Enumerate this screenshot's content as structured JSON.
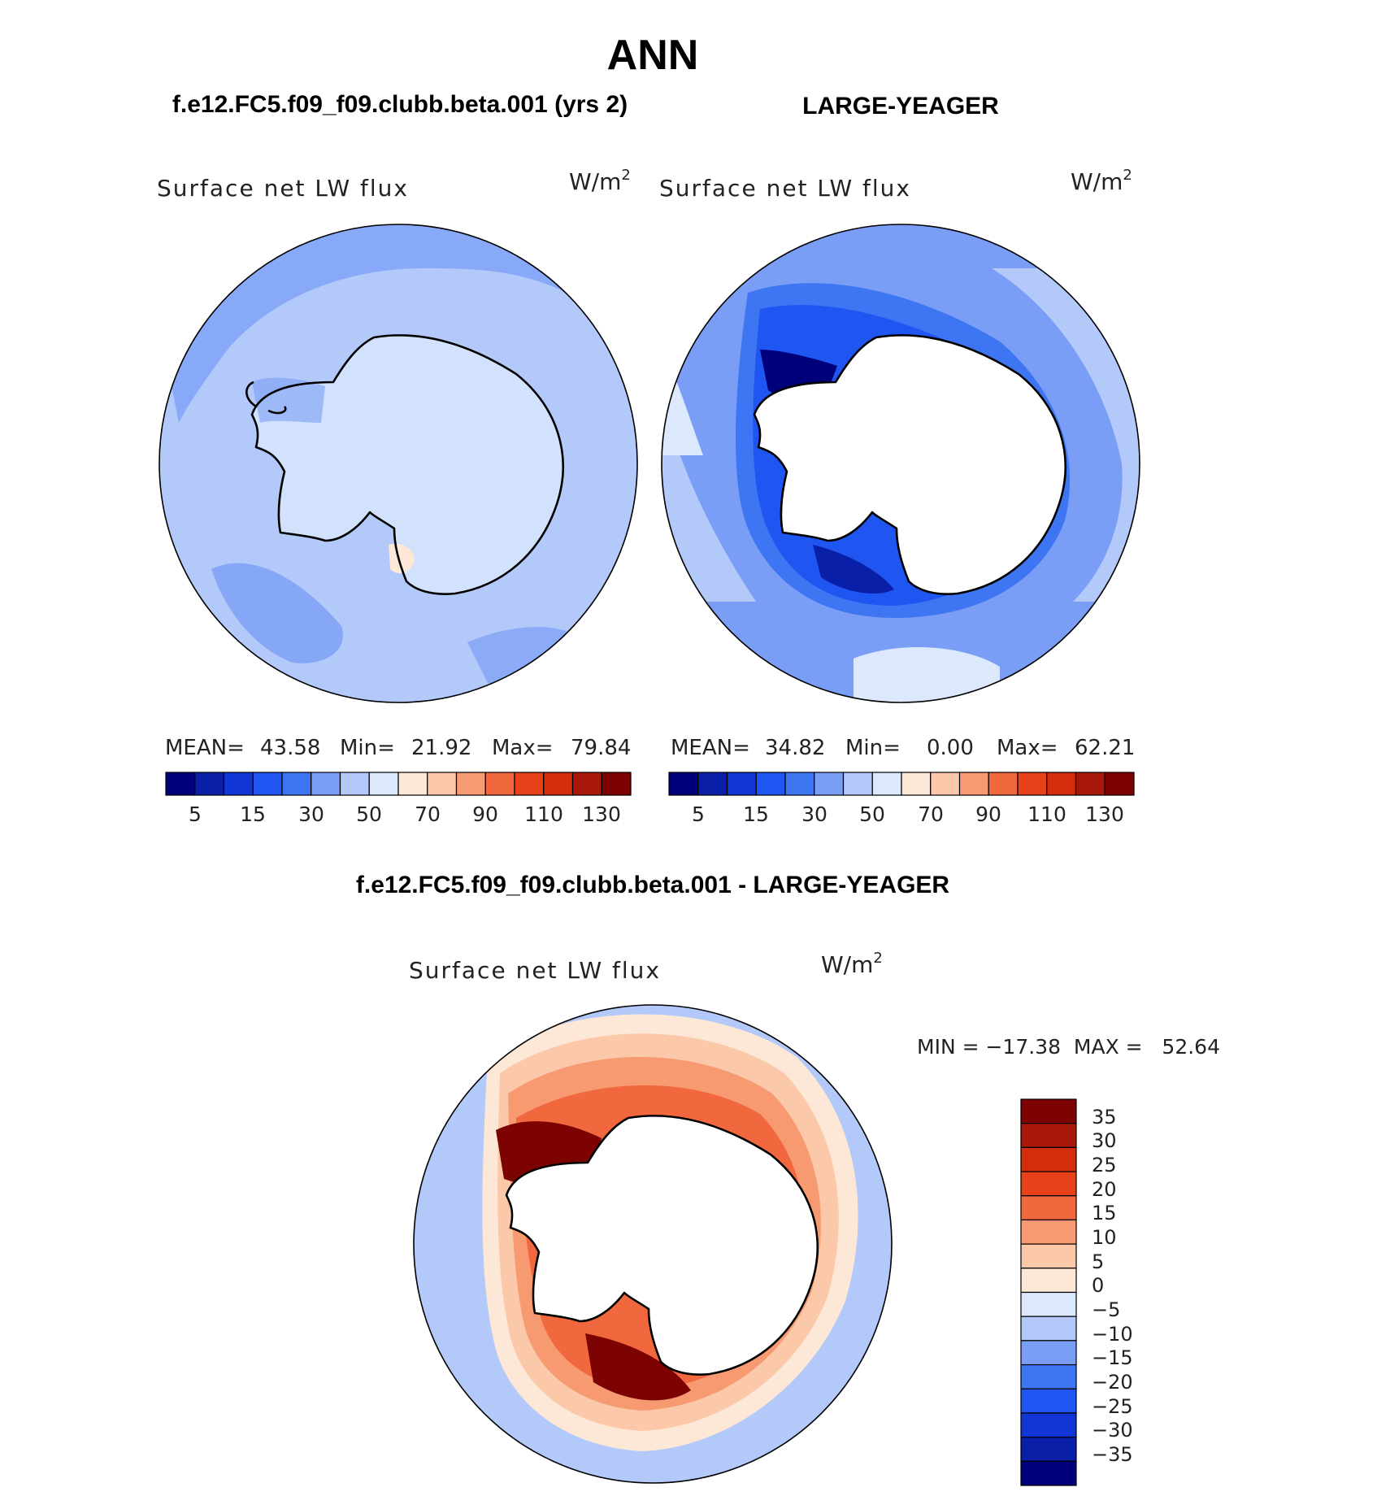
{
  "page_title": "ANN",
  "colors": {
    "map_palette": [
      "#00007a",
      "#0a1fa8",
      "#1236d6",
      "#1f55f0",
      "#3e75f2",
      "#7a9ef5",
      "#b3c9fa",
      "#dce8fc",
      "#fde8d7",
      "#fcc8aa",
      "#f79a72",
      "#f2683e",
      "#e8421a",
      "#d42d0e",
      "#a8180a",
      "#7d0202"
    ],
    "diff_palette": [
      "#00007a",
      "#0a1fa8",
      "#1236d6",
      "#1f55f0",
      "#3e75f2",
      "#7a9ef5",
      "#b3c9fa",
      "#dce8fc",
      "#fde8d7",
      "#fcc8aa",
      "#f79a72",
      "#f2683e",
      "#e8421a",
      "#d42d0e",
      "#a8180a",
      "#7d0202"
    ]
  },
  "panels": [
    {
      "heading": "f.e12.FC5.f09_f09.clubb.beta.001 (yrs 2)",
      "variable": "Surface net LW flux",
      "units": "W/m",
      "units_exp": "2",
      "stats": {
        "mean_label": "MEAN=",
        "mean": "43.58",
        "min_label": "Min=",
        "min": "21.92",
        "max_label": "Max=",
        "max": "79.84"
      },
      "colorbar_ticks": [
        "5",
        "15",
        "30",
        "50",
        "70",
        "90",
        "110",
        "130"
      ],
      "field": {
        "ocean_level": 5,
        "land_level": 6
      }
    },
    {
      "heading": "LARGE-YEAGER",
      "variable": "Surface net LW flux",
      "units": "W/m",
      "units_exp": "2",
      "stats": {
        "mean_label": "MEAN=",
        "mean": "34.82",
        "min_label": "Min=",
        "min": "0.00",
        "max_label": "Max=",
        "max": "62.21"
      },
      "colorbar_ticks": [
        "5",
        "15",
        "30",
        "50",
        "70",
        "90",
        "110",
        "130"
      ],
      "field": {
        "ocean_level": 6,
        "land": "missing"
      }
    }
  ],
  "difference": {
    "heading": "f.e12.FC5.f09_f09.clubb.beta.001 - LARGE-YEAGER",
    "variable": "Surface net LW flux",
    "units": "W/m",
    "units_exp": "2",
    "stats": {
      "text": "MIN = −17.38  MAX =   52.64",
      "min": "-17.38",
      "max": "52.64"
    },
    "colorbar_ticks": [
      "35",
      "30",
      "25",
      "20",
      "15",
      "10",
      "5",
      "0",
      "−5",
      "−10",
      "−15",
      "−20",
      "−25",
      "−30",
      "−35"
    ]
  }
}
